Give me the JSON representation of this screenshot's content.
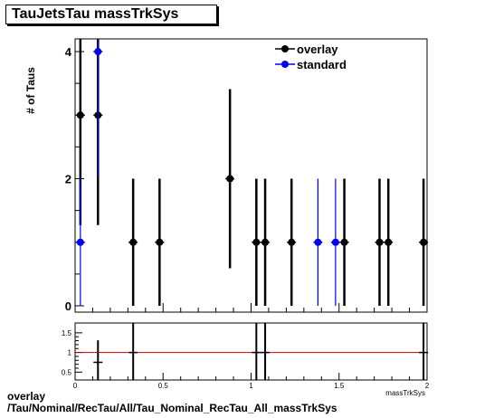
{
  "title": "TauJetsTau massTrkSys",
  "footer": {
    "line1": "overlay",
    "line2": "/Tau/Nominal/RecTau/All/Tau_Nominal_RecTau_All_massTrkSys"
  },
  "colors": {
    "overlay": "#000000",
    "standard": "#0000ee",
    "ratio_line": "#cc0000"
  },
  "chart_data": [
    {
      "type": "scatter",
      "ylabel": "# of Taus",
      "xlim": [
        0,
        2
      ],
      "ylim": [
        -0.1,
        4.2
      ],
      "yticks": [
        0,
        2,
        4
      ],
      "legend_position": "top-right",
      "series": [
        {
          "name": "overlay",
          "points": [
            {
              "x": 0.03,
              "y": 3,
              "err": 1.73
            },
            {
              "x": 0.13,
              "y": 3,
              "err": 1.73
            },
            {
              "x": 0.33,
              "y": 1,
              "err": 1
            },
            {
              "x": 0.48,
              "y": 1,
              "err": 1
            },
            {
              "x": 0.88,
              "y": 2,
              "err": 1.41
            },
            {
              "x": 1.03,
              "y": 1,
              "err": 1
            },
            {
              "x": 1.08,
              "y": 1,
              "err": 1
            },
            {
              "x": 1.23,
              "y": 1,
              "err": 1
            },
            {
              "x": 1.53,
              "y": 1,
              "err": 1
            },
            {
              "x": 1.73,
              "y": 1,
              "err": 1
            },
            {
              "x": 1.78,
              "y": 1,
              "err": 1
            },
            {
              "x": 1.98,
              "y": 1,
              "err": 1
            }
          ]
        },
        {
          "name": "standard",
          "points": [
            {
              "x": 0.03,
              "y": 1,
              "err": 1
            },
            {
              "x": 0.13,
              "y": 4,
              "err": 2
            },
            {
              "x": 1.38,
              "y": 1,
              "err": 1
            },
            {
              "x": 1.48,
              "y": 1,
              "err": 1
            }
          ]
        }
      ]
    },
    {
      "type": "scatter",
      "xlabel": "massTrkSys",
      "xlim": [
        0,
        2
      ],
      "ylim": [
        0.3,
        1.75
      ],
      "xticks": [
        0,
        0.5,
        1,
        1.5,
        2
      ],
      "yticks": [
        0.5,
        1,
        1.5
      ],
      "reference_line": 1,
      "points": [
        {
          "x": 0.13,
          "y": 0.75,
          "err": 0.56
        },
        {
          "x": 0.33,
          "y": 1,
          "err": 1.41
        },
        {
          "x": 1.03,
          "y": 1,
          "err": 1.41
        },
        {
          "x": 1.08,
          "y": 1,
          "err": 1.41
        },
        {
          "x": 1.98,
          "y": 1,
          "err": 1.41
        }
      ]
    }
  ]
}
